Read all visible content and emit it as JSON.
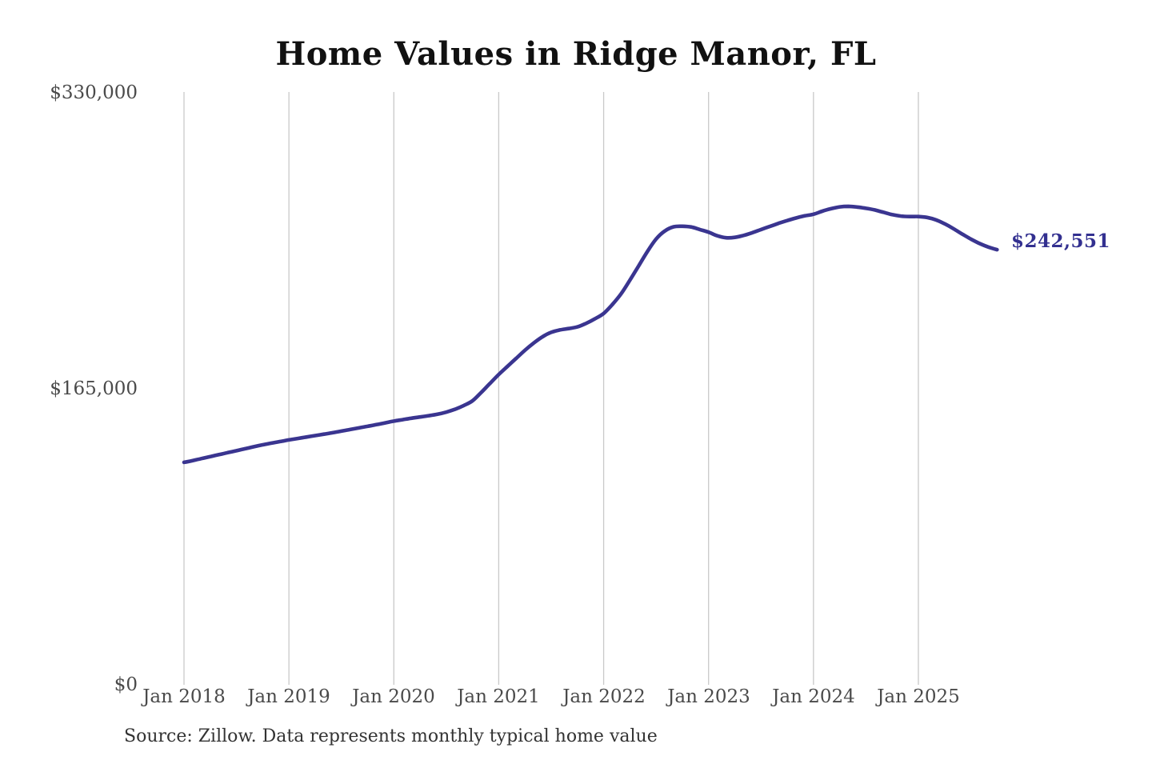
{
  "title": "Home Values in Ridge Manor, FL",
  "source_note": "Source: Zillow. Data represents monthly typical home value",
  "value_callout": "$242,551",
  "colors": {
    "line": "#3a3590",
    "grid": "#c9c9c9",
    "title_text": "#111111",
    "tick_text": "#4a4a4a",
    "source_text": "#333333",
    "callout_text": "#333090",
    "background": "#ffffff"
  },
  "chart_data": {
    "type": "line",
    "title": "Home Values in Ridge Manor, FL",
    "unit": "USD",
    "x_interval": "monthly",
    "x_start": "2018-01",
    "x_end": "2025-10",
    "x_tick_labels": [
      "Jan 2018",
      "Jan 2019",
      "Jan 2020",
      "Jan 2021",
      "Jan 2022",
      "Jan 2023",
      "Jan 2024",
      "Jan 2025"
    ],
    "y_tick_labels": [
      "$330,000",
      "$165,000",
      "$0"
    ],
    "y_tick_values": [
      330000,
      165000,
      0
    ],
    "ylim": [
      0,
      330000
    ],
    "grid": "vertical-only",
    "legend": "none",
    "last_value": 242551,
    "series": [
      {
        "name": "Typical home value",
        "values": [
          124000,
          125000,
          126100,
          127200,
          128300,
          129400,
          130500,
          131600,
          132700,
          133800,
          134700,
          135600,
          136500,
          137300,
          138100,
          138900,
          139700,
          140500,
          141400,
          142300,
          143200,
          144100,
          145000,
          146000,
          147000,
          147800,
          148600,
          149300,
          150000,
          150800,
          152000,
          153600,
          155700,
          158300,
          163000,
          168000,
          173000,
          177500,
          182000,
          186500,
          190500,
          194000,
          196500,
          197800,
          198600,
          199500,
          201500,
          204000,
          207000,
          212000,
          218000,
          225500,
          233500,
          241500,
          248500,
          253000,
          255300,
          255600,
          255200,
          253800,
          252300,
          250300,
          249200,
          249400,
          250500,
          252000,
          253800,
          255500,
          257200,
          258800,
          260200,
          261400,
          262300,
          264000,
          265400,
          266400,
          266700,
          266300,
          265600,
          264700,
          263400,
          262100,
          261300,
          261000,
          261000,
          260500,
          259200,
          257000,
          254300,
          251300,
          248500,
          246000,
          244000,
          242551
        ]
      }
    ]
  }
}
